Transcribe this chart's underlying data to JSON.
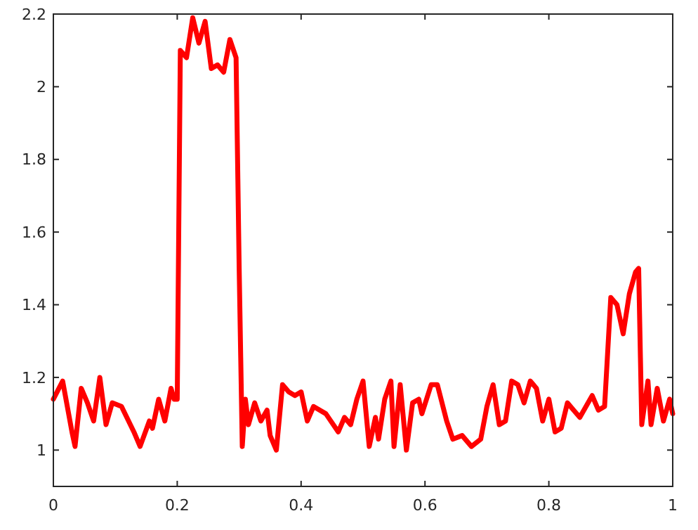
{
  "chart_data": {
    "type": "line",
    "x": [
      0,
      0.015,
      0.03,
      0.035,
      0.045,
      0.055,
      0.065,
      0.075,
      0.085,
      0.095,
      0.11,
      0.13,
      0.14,
      0.155,
      0.16,
      0.17,
      0.18,
      0.19,
      0.195,
      0.2,
      0.205,
      0.215,
      0.225,
      0.235,
      0.245,
      0.255,
      0.265,
      0.275,
      0.285,
      0.295,
      0.3,
      0.305,
      0.31,
      0.315,
      0.325,
      0.335,
      0.345,
      0.35,
      0.36,
      0.37,
      0.38,
      0.39,
      0.4,
      0.41,
      0.42,
      0.44,
      0.46,
      0.47,
      0.48,
      0.49,
      0.5,
      0.51,
      0.52,
      0.525,
      0.535,
      0.545,
      0.55,
      0.56,
      0.57,
      0.58,
      0.59,
      0.595,
      0.61,
      0.62,
      0.635,
      0.645,
      0.66,
      0.675,
      0.69,
      0.7,
      0.71,
      0.72,
      0.73,
      0.74,
      0.75,
      0.76,
      0.77,
      0.78,
      0.79,
      0.8,
      0.81,
      0.82,
      0.83,
      0.84,
      0.85,
      0.86,
      0.87,
      0.88,
      0.89,
      0.9,
      0.91,
      0.92,
      0.93,
      0.94,
      0.945,
      0.95,
      0.96,
      0.965,
      0.975,
      0.985,
      0.995,
      1
    ],
    "series": [
      {
        "color": "#ff0000",
        "values": [
          1.14,
          1.19,
          1.05,
          1.01,
          1.17,
          1.13,
          1.08,
          1.2,
          1.07,
          1.13,
          1.12,
          1.05,
          1.01,
          1.08,
          1.06,
          1.14,
          1.08,
          1.17,
          1.14,
          1.14,
          2.1,
          2.08,
          2.19,
          2.12,
          2.18,
          2.05,
          2.06,
          2.04,
          2.13,
          2.08,
          1.5,
          1.01,
          1.14,
          1.07,
          1.13,
          1.08,
          1.11,
          1.04,
          1,
          1.18,
          1.16,
          1.15,
          1.16,
          1.08,
          1.12,
          1.1,
          1.05,
          1.09,
          1.07,
          1.14,
          1.19,
          1.01,
          1.09,
          1.03,
          1.14,
          1.19,
          1.01,
          1.18,
          1,
          1.13,
          1.14,
          1.1,
          1.18,
          1.18,
          1.08,
          1.03,
          1.04,
          1.01,
          1.03,
          1.12,
          1.18,
          1.07,
          1.08,
          1.19,
          1.18,
          1.13,
          1.19,
          1.17,
          1.08,
          1.14,
          1.05,
          1.06,
          1.13,
          1.11,
          1.09,
          1.12,
          1.15,
          1.11,
          1.12,
          1.42,
          1.4,
          1.32,
          1.43,
          1.49,
          1.5,
          1.07,
          1.19,
          1.07,
          1.17,
          1.08,
          1.14,
          1.1
        ]
      }
    ],
    "xlim": [
      0,
      1
    ],
    "xticks": [
      0,
      0.2,
      0.4,
      0.6,
      0.8,
      1
    ],
    "ylim": [
      0.9,
      2.2
    ],
    "yticks": [
      1,
      1.2,
      1.4,
      1.6,
      1.8,
      2,
      2.2
    ],
    "marker": "none",
    "line_style": "solid",
    "grid": false
  }
}
